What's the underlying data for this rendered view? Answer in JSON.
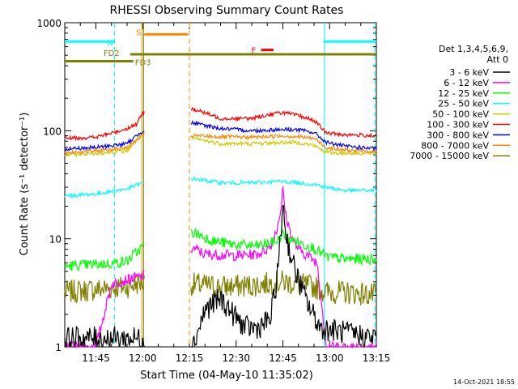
{
  "chart_data": {
    "type": "line",
    "title": "RHESSI Observing Summary Count Rates",
    "xlabel": "Start Time (04-May-10 11:35:02)",
    "ylabel": "Count Rate (s⁻¹ detector⁻¹)",
    "yscale": "log",
    "ylim": [
      1,
      1000
    ],
    "xlim_minutes": [
      0,
      100
    ],
    "x_ticks": [
      {
        "label": "11:45",
        "min": 10
      },
      {
        "label": "12:00",
        "min": 25
      },
      {
        "label": "12:15",
        "min": 40
      },
      {
        "label": "12:30",
        "min": 55
      },
      {
        "label": "12:45",
        "min": 70
      },
      {
        "label": "13:00",
        "min": 85
      },
      {
        "label": "13:15",
        "min": 100
      }
    ],
    "y_ticks": [
      {
        "label": "1",
        "v": 1
      },
      {
        "label": "10",
        "v": 10
      },
      {
        "label": "100",
        "v": 100
      },
      {
        "label": "1000",
        "v": 1000
      }
    ],
    "legend_header": [
      "Det 1,3,4,5,6,9,",
      "Att 0"
    ],
    "gaps_minutes": [
      [
        25.5,
        40.5
      ]
    ],
    "series": [
      {
        "name": "3 - 6 keV",
        "color": "#000000",
        "x": [
          0,
          25,
          41,
          45,
          50,
          54,
          58,
          62,
          66,
          68,
          69.5,
          70,
          70.5,
          72,
          74,
          76,
          78,
          82,
          100
        ],
        "y": [
          1.2,
          1.2,
          1.0,
          2.2,
          2.8,
          2.0,
          1.5,
          1.5,
          1.8,
          4,
          12,
          24,
          14,
          8,
          5,
          3.5,
          2.5,
          1.5,
          1.2
        ]
      },
      {
        "name": "6 - 12 keV",
        "color": "#ff00ff",
        "x": [
          0,
          10,
          15,
          20,
          25,
          41,
          45,
          55,
          62,
          66,
          68,
          69.5,
          70,
          71,
          73,
          75,
          78,
          81,
          84,
          100
        ],
        "y": [
          1.0,
          1.0,
          3.8,
          4.2,
          4.5,
          8.2,
          7.2,
          7.0,
          7.2,
          8.5,
          12,
          20,
          28,
          16,
          10,
          8,
          7,
          6,
          1.0,
          1.0
        ]
      },
      {
        "name": "12 - 25 keV",
        "color": "#00ff00",
        "x": [
          0,
          15,
          20,
          25,
          41,
          48,
          55,
          62,
          68,
          70,
          72,
          76,
          80,
          84,
          90,
          100
        ],
        "y": [
          5.6,
          5.9,
          6.2,
          8.5,
          11.5,
          9.5,
          8.8,
          8.6,
          9.5,
          11,
          10,
          9,
          8.2,
          6.8,
          6.5,
          6.5
        ]
      },
      {
        "name": "25 - 50 keV",
        "color": "#00ffff",
        "x": [
          0,
          10,
          20,
          25,
          41,
          50,
          60,
          70,
          75,
          80,
          84,
          90,
          100
        ],
        "y": [
          25,
          26,
          29,
          33,
          36,
          33,
          33,
          34,
          33,
          32,
          30,
          28,
          28
        ]
      },
      {
        "name": "50 - 100 keV",
        "color": "#cccc00",
        "x": [
          0,
          10,
          20,
          25,
          41,
          50,
          60,
          70,
          75,
          80,
          84,
          90,
          100
        ],
        "y": [
          60,
          62,
          65,
          95,
          85,
          76,
          76,
          78,
          78,
          73,
          63,
          62,
          62
        ]
      },
      {
        "name": "100 - 300 keV",
        "color": "#ff0000",
        "x": [
          0,
          10,
          15,
          20,
          23,
          25,
          41,
          50,
          60,
          65,
          70,
          75,
          80,
          84,
          90,
          100
        ],
        "y": [
          85,
          87,
          95,
          105,
          115,
          145,
          160,
          130,
          130,
          140,
          148,
          138,
          125,
          95,
          92,
          90
        ]
      },
      {
        "name": "300 - 800 keV",
        "color": "#0000ff",
        "x": [
          0,
          10,
          20,
          25,
          41,
          50,
          60,
          70,
          75,
          80,
          84,
          90,
          100
        ],
        "y": [
          68,
          70,
          76,
          100,
          118,
          105,
          100,
          103,
          102,
          96,
          78,
          72,
          68
        ]
      },
      {
        "name": "800 - 7000 keV",
        "color": "#ff8800",
        "x": [
          0,
          10,
          20,
          25,
          41,
          50,
          60,
          70,
          75,
          80,
          84,
          90,
          100
        ],
        "y": [
          63,
          65,
          70,
          90,
          90,
          88,
          87,
          90,
          88,
          85,
          70,
          66,
          64
        ]
      },
      {
        "name": "7000 - 15000 keV",
        "color": "#808000",
        "x": [
          0,
          10,
          20,
          25,
          41,
          50,
          60,
          70,
          75,
          80,
          84,
          90,
          100
        ],
        "y": [
          3.2,
          3.4,
          3.6,
          4.0,
          3.8,
          3.6,
          3.7,
          4.0,
          3.8,
          3.6,
          3.2,
          3.2,
          3.0
        ]
      }
    ],
    "flag_bars": [
      {
        "label": "N",
        "color": "#00ffff",
        "segments": [
          [
            0,
            16
          ],
          [
            83,
            100
          ]
        ],
        "y": 670
      },
      {
        "label": "S",
        "color": "#ff8800",
        "segments": [
          [
            25.5,
            39.5
          ]
        ],
        "y": 780
      },
      {
        "label": "F",
        "color": "#ff0000",
        "segments": [
          [
            63,
            67
          ]
        ],
        "y": 560
      },
      {
        "label": "FD2",
        "color": "#808000",
        "segments": [
          [
            21,
            100
          ]
        ],
        "y": 510
      },
      {
        "label": "FD3",
        "color": "#808000",
        "segments": [
          [
            0,
            22
          ]
        ],
        "y": 440
      }
    ],
    "vlines": [
      {
        "min": 16,
        "color": "#00ffff",
        "style": "dashed"
      },
      {
        "min": 24.8,
        "color": "#ff8800",
        "style": "solid"
      },
      {
        "min": 25.3,
        "color": "#808000",
        "style": "solid"
      },
      {
        "min": 40,
        "color": "#ff8800",
        "style": "dashed"
      },
      {
        "min": 83.3,
        "color": "#00ffff",
        "style": "solid"
      },
      {
        "min": 99.5,
        "color": "#00ffff",
        "style": "dashed"
      }
    ]
  },
  "footer": {
    "timestamp": "14-Oct-2021 18:55"
  }
}
